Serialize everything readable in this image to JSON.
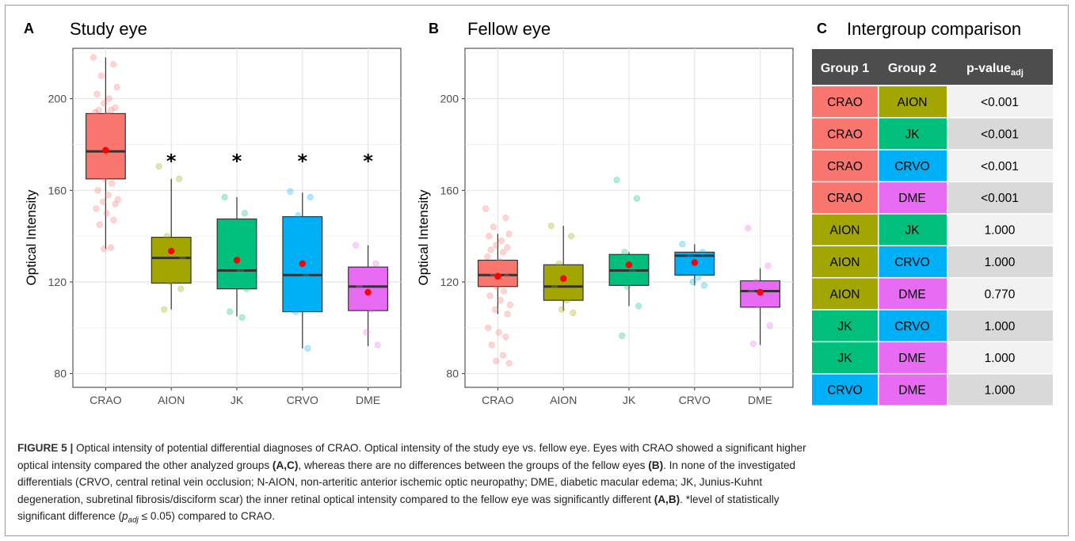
{
  "chart_data": [
    {
      "type": "box",
      "panel_letter": "A",
      "title": "Study eye",
      "ylabel": "Optical Intensity",
      "ylim": [
        74,
        222
      ],
      "yticks": [
        80,
        120,
        160,
        200
      ],
      "categories": [
        "CRAO",
        "AION",
        "JK",
        "CRVO",
        "DME"
      ],
      "colors": [
        "#f8766d",
        "#a3a500",
        "#00bf7d",
        "#00b0f6",
        "#e76bf3"
      ],
      "boxes": [
        {
          "category": "CRAO",
          "whisker_low": 134.5,
          "q1": 165,
          "median": 177,
          "q3": 193.5,
          "whisker_high": 218,
          "mean": 177.5
        },
        {
          "category": "AION",
          "whisker_low": 108,
          "q1": 119.5,
          "median": 130.5,
          "q3": 139.5,
          "whisker_high": 165,
          "mean": 133.5
        },
        {
          "category": "JK",
          "whisker_low": 105,
          "q1": 117,
          "median": 125,
          "q3": 147.5,
          "whisker_high": 157,
          "mean": 129.5
        },
        {
          "category": "CRVO",
          "whisker_low": 91,
          "q1": 107,
          "median": 123,
          "q3": 148.5,
          "whisker_high": 159,
          "mean": 128
        },
        {
          "category": "DME",
          "whisker_low": 92,
          "q1": 107.5,
          "median": 118,
          "q3": 126.5,
          "whisker_high": 136,
          "mean": 115.5
        }
      ],
      "points": [
        [
          218,
          215,
          210,
          205,
          202,
          200,
          198,
          196,
          195,
          195,
          194,
          193,
          190,
          188,
          185,
          182,
          176,
          172,
          170,
          168,
          165,
          163,
          160,
          158,
          156,
          155,
          154,
          152,
          150,
          147,
          145,
          135,
          134.5
        ],
        [
          170.5,
          165,
          140,
          130,
          128,
          126,
          120,
          117,
          108
        ],
        [
          157,
          150,
          140,
          130,
          128,
          125,
          120,
          117,
          107,
          104.5
        ],
        [
          159.5,
          157,
          149,
          140,
          130,
          123,
          115,
          110,
          107,
          91
        ],
        [
          136,
          128,
          123,
          120,
          118,
          108,
          98,
          92.5
        ]
      ],
      "significance_marker": "*",
      "significant_categories": [
        "AION",
        "JK",
        "CRVO",
        "DME"
      ]
    },
    {
      "type": "box",
      "panel_letter": "B",
      "title": "Fellow eye",
      "ylabel": "Optical Intensity",
      "ylim": [
        74,
        222
      ],
      "yticks": [
        80,
        120,
        160,
        200
      ],
      "categories": [
        "CRAO",
        "AION",
        "JK",
        "CRVO",
        "DME"
      ],
      "colors": [
        "#f8766d",
        "#a3a500",
        "#00bf7d",
        "#00b0f6",
        "#e76bf3"
      ],
      "boxes": [
        {
          "category": "CRAO",
          "whisker_low": 106,
          "q1": 118,
          "median": 123,
          "q3": 129.5,
          "whisker_high": 141,
          "mean": 122.5
        },
        {
          "category": "AION",
          "whisker_low": 107.5,
          "q1": 112,
          "median": 118,
          "q3": 127.5,
          "whisker_high": 144.5,
          "mean": 121.5
        },
        {
          "category": "JK",
          "whisker_low": 109.5,
          "q1": 118.5,
          "median": 125,
          "q3": 132,
          "whisker_high": 133,
          "mean": 127.5
        },
        {
          "category": "CRVO",
          "whisker_low": 118.5,
          "q1": 123,
          "median": 131.5,
          "q3": 133,
          "whisker_high": 136.5,
          "mean": 128.5
        },
        {
          "category": "DME",
          "whisker_low": 92.5,
          "q1": 109,
          "median": 116,
          "q3": 120.5,
          "whisker_high": 126,
          "mean": 115.5
        }
      ],
      "points": [
        [
          152,
          148,
          144,
          141,
          140,
          138,
          136,
          135,
          134,
          133,
          131,
          129,
          128,
          127,
          125,
          124,
          123,
          122,
          121,
          120,
          118,
          116,
          114,
          112,
          110,
          108,
          106,
          100,
          98,
          96,
          92.5,
          88,
          85.5,
          84.5
        ],
        [
          144.5,
          140,
          128,
          122,
          118,
          112,
          108,
          106.5
        ],
        [
          164.5,
          156.5,
          133,
          130,
          128,
          125,
          118,
          109.5,
          96.5
        ],
        [
          136.5,
          133,
          131,
          128,
          125,
          122,
          120,
          118.5
        ],
        [
          143.5,
          127,
          120,
          118,
          116,
          112,
          110,
          101,
          93
        ]
      ],
      "significance_marker": "",
      "significant_categories": []
    }
  ],
  "table": {
    "panel_letter": "C",
    "title": "Intergroup comparison",
    "headers": {
      "group1": "Group 1",
      "group2": "Group 2",
      "p_main": "p-value",
      "p_sub": "adj"
    },
    "rows": [
      {
        "g1": "CRAO",
        "g2": "AION",
        "p": "<0.001"
      },
      {
        "g1": "CRAO",
        "g2": "JK",
        "p": "<0.001"
      },
      {
        "g1": "CRAO",
        "g2": "CRVO",
        "p": "<0.001"
      },
      {
        "g1": "CRAO",
        "g2": "DME",
        "p": "<0.001"
      },
      {
        "g1": "AION",
        "g2": "JK",
        "p": "1.000"
      },
      {
        "g1": "AION",
        "g2": "CRVO",
        "p": "1.000"
      },
      {
        "g1": "AION",
        "g2": "DME",
        "p": "0.770"
      },
      {
        "g1": "JK",
        "g2": "CRVO",
        "p": "1.000"
      },
      {
        "g1": "JK",
        "g2": "DME",
        "p": "1.000"
      },
      {
        "g1": "CRVO",
        "g2": "DME",
        "p": "1.000"
      }
    ],
    "group_colors": {
      "CRAO": "#f8766d",
      "AION": "#a3a500",
      "JK": "#00bf7d",
      "CRVO": "#00b0f6",
      "DME": "#e76bf3"
    },
    "header_color": "#4d4d4d",
    "p_row_colors": [
      "#f2f2f2",
      "#d9d9d9"
    ]
  },
  "caption": {
    "figure_label": "FIGURE 5 |",
    "lines": [
      [
        {
          "t": " Optical intensity of potential differential diagnoses of CRAO. Optical intensity of the study eye vs. fellow eye. Eyes with CRAO showed a significant higher",
          "b": false
        }
      ],
      [
        {
          "t": "optical intensity compared the other analyzed groups ",
          "b": false
        },
        {
          "t": "(A,C)",
          "b": true
        },
        {
          "t": ", whereas there are no differences between the groups of the fellow eyes ",
          "b": false
        },
        {
          "t": "(B)",
          "b": true
        },
        {
          "t": ". In none of the investigated",
          "b": false
        }
      ],
      [
        {
          "t": "differentials (CRVO, central retinal vein occlusion; N-AION, non-arteritic anterior ischemic optic neuropathy; DME, diabetic macular edema; JK, Junius-Kuhnt",
          "b": false
        }
      ],
      [
        {
          "t": "degeneration, subretinal fibrosis/disciform scar) the inner retinal optical intensity compared to the fellow eye was significantly different ",
          "b": false
        },
        {
          "t": "(A,B)",
          "b": true
        },
        {
          "t": ". *level of statistically",
          "b": false
        }
      ],
      [
        {
          "t": "significant difference (",
          "b": false
        },
        {
          "t": "p",
          "b": false,
          "i": true
        },
        {
          "t": "adj",
          "b": false,
          "i": true,
          "sub": true
        },
        {
          "t": " ≤ 0.05) compared to CRAO.",
          "b": false
        }
      ]
    ]
  }
}
